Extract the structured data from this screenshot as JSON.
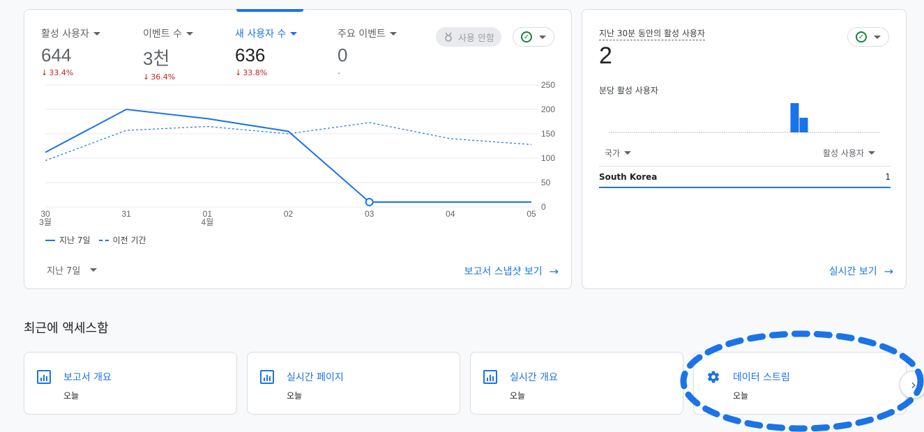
{
  "metrics": [
    {
      "label": "활성 사용자",
      "value": "644",
      "change": "33.4%"
    },
    {
      "label": "이벤트 수",
      "value": "3천",
      "change": "36.4%"
    },
    {
      "label": "새 사용자 수",
      "value": "636",
      "change": "33.8%"
    },
    {
      "label": "주요 이벤트",
      "value": "0",
      "change": "-"
    }
  ],
  "unused_chip": "사용 안함",
  "chart_data": {
    "type": "line",
    "categories": [
      "30\n3월",
      "31",
      "01\n4월",
      "02",
      "03",
      "04",
      "05"
    ],
    "series": [
      {
        "name": "지난 7일",
        "values": [
          112,
          200,
          181,
          155,
          10,
          10,
          10
        ],
        "style": "solid",
        "color": "#1a73e8"
      },
      {
        "name": "이전 기간",
        "values": [
          95,
          157,
          165,
          150,
          173,
          140,
          128
        ],
        "style": "dashed",
        "color": "#1a73e8"
      }
    ],
    "y_ticks": [
      "0",
      "50",
      "100",
      "150",
      "200",
      "250"
    ],
    "ylim": [
      0,
      250
    ],
    "grid": true
  },
  "legend": {
    "current": "지난 7일",
    "previous": "이전 기간"
  },
  "range_select": "지난 7일",
  "snapshot_link": "보고서 스냅샷 보기",
  "realtime": {
    "title": "지난 30분 동안의 활성 사용자",
    "value": "2",
    "subtitle": "분당 활성 사용자",
    "minute_bars": [
      0,
      0,
      0,
      0,
      0,
      0,
      0,
      0,
      0,
      0,
      0,
      0,
      0,
      0,
      0,
      0,
      0,
      0,
      0,
      0,
      2,
      1,
      0,
      0,
      0,
      0,
      0,
      0,
      0,
      0
    ],
    "col_country": "국가",
    "col_users": "활성 사용자",
    "rows": [
      {
        "country": "South Korea",
        "count": "1"
      }
    ],
    "link": "실시간 보기"
  },
  "recent": {
    "title": "최근에 액세스함",
    "items": [
      {
        "title": "보고서 개요",
        "sub": "오늘",
        "icon": "bar-chart-icon"
      },
      {
        "title": "실시간 페이지",
        "sub": "오늘",
        "icon": "bar-chart-icon"
      },
      {
        "title": "실시간 개요",
        "sub": "오늘",
        "icon": "bar-chart-icon"
      },
      {
        "title": "데이터 스트림",
        "sub": "오늘",
        "icon": "gear-icon"
      }
    ]
  },
  "colors": {
    "accent": "#1a73e8",
    "down": "#c5221f",
    "ok": "#188038"
  }
}
